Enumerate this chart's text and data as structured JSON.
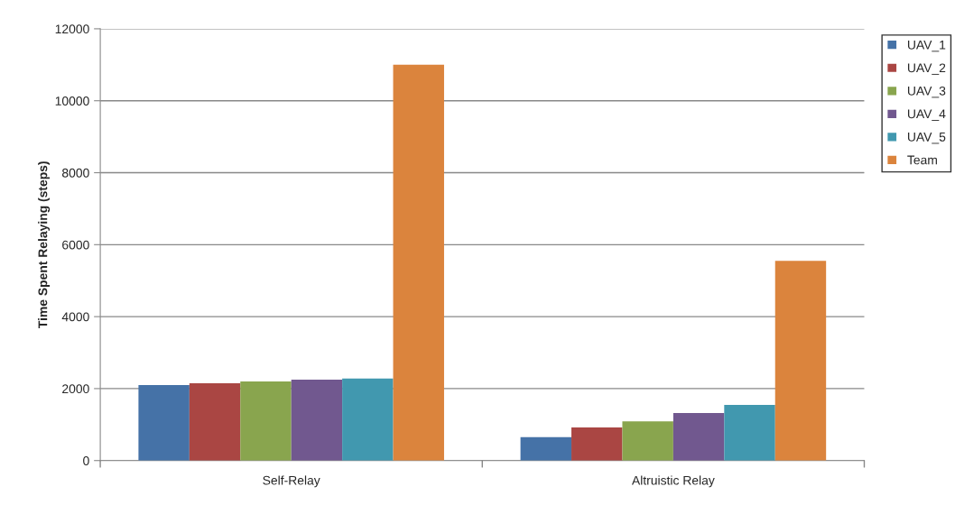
{
  "chart_data": {
    "type": "bar",
    "ylabel": "Time Spent Relaying (steps)",
    "categories": [
      "Self-Relay",
      "Altruistic Relay"
    ],
    "series": [
      {
        "name": "UAV_1",
        "color": "#4572a7",
        "values": [
          2100,
          650
        ]
      },
      {
        "name": "UAV_2",
        "color": "#aa4643",
        "values": [
          2150,
          920
        ]
      },
      {
        "name": "UAV_3",
        "color": "#89a54e",
        "values": [
          2200,
          1090
        ]
      },
      {
        "name": "UAV_4",
        "color": "#71588f",
        "values": [
          2250,
          1320
        ]
      },
      {
        "name": "UAV_5",
        "color": "#4198af",
        "values": [
          2280,
          1550
        ]
      },
      {
        "name": "Team",
        "color": "#db843d",
        "values": [
          11000,
          5550
        ]
      }
    ],
    "ylim": [
      0,
      12000
    ],
    "yticks": [
      0,
      2000,
      4000,
      6000,
      8000,
      10000,
      12000
    ],
    "grid": "y",
    "legend": "top right"
  }
}
